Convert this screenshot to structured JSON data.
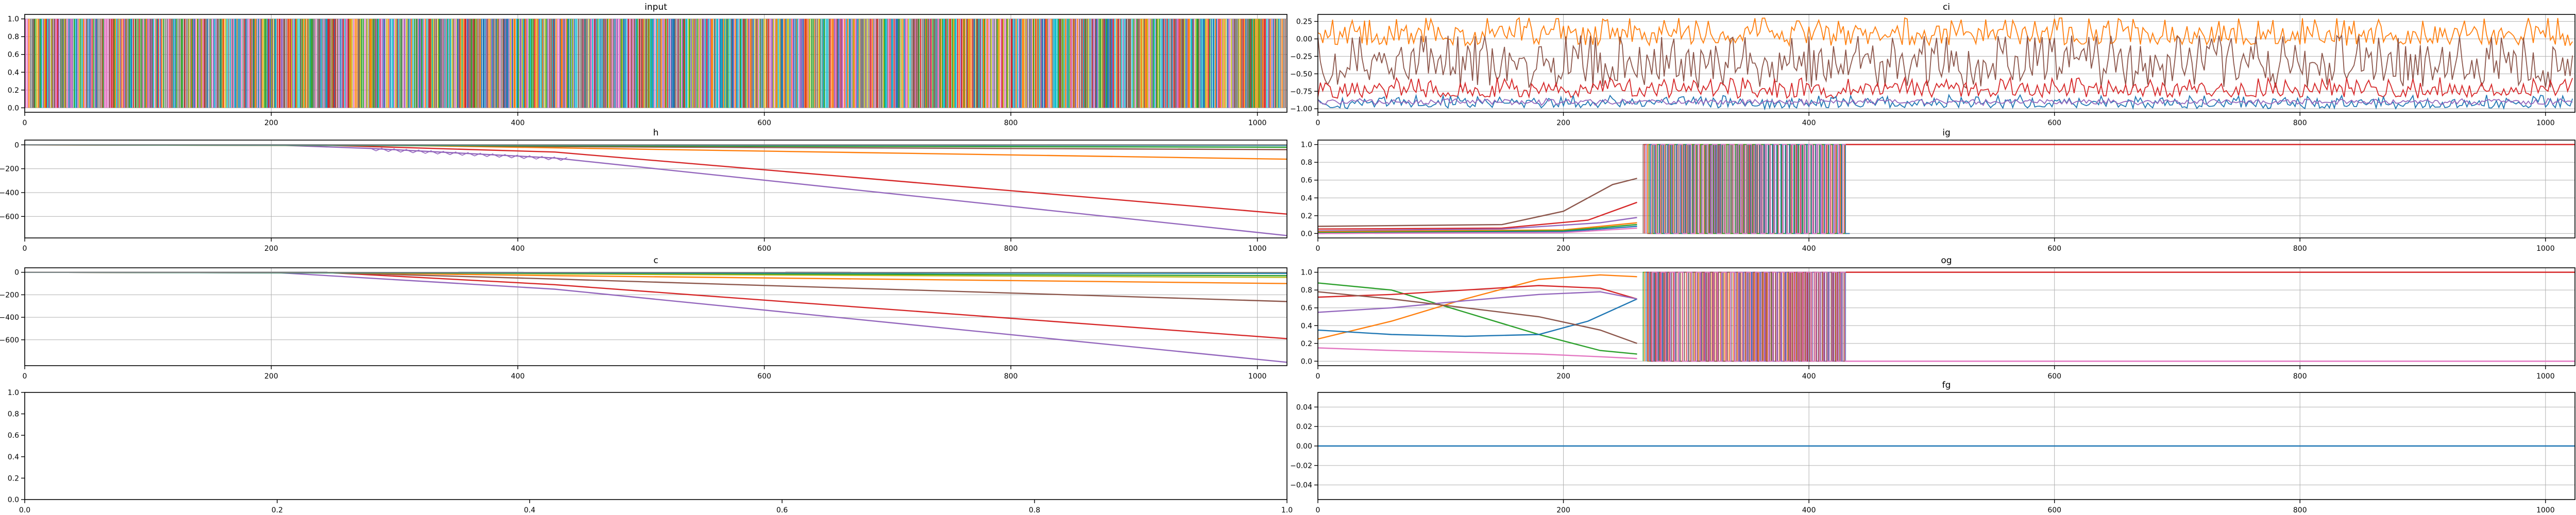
{
  "figure": {
    "background": "#ffffff"
  },
  "chart_data": [
    {
      "id": "input",
      "type": "line",
      "title": "input",
      "xlim": [
        0,
        1024
      ],
      "ylim": [
        -0.05,
        1.05
      ],
      "xticks": [
        0,
        200,
        400,
        600,
        800,
        1000
      ],
      "yticks": [
        0.0,
        0.2,
        0.4,
        0.6,
        0.8,
        1.0
      ],
      "ytick_labels": [
        "0.0",
        "0.2",
        "0.4",
        "0.6",
        "0.8",
        "1.0"
      ],
      "grid": true,
      "render": "dense_binary",
      "description_series": "many overlapping binary (0/1) input channels across t = 0–1023",
      "series": []
    },
    {
      "id": "ci",
      "type": "line",
      "title": "ci",
      "xlim": [
        0,
        1024
      ],
      "ylim": [
        -1.05,
        0.35
      ],
      "xticks": [
        0,
        200,
        400,
        600,
        800,
        1000
      ],
      "yticks": [
        0.25,
        0.0,
        -0.25,
        -0.5,
        -0.75,
        -1.0
      ],
      "ytick_labels": [
        "0.25",
        "0.00",
        "−0.25",
        "−0.50",
        "−0.75",
        "−1.00"
      ],
      "grid": true,
      "render": "noisy",
      "series": [
        {
          "color": "#ff7f0e",
          "band": [
            -0.1,
            0.3
          ],
          "base": 0.05
        },
        {
          "color": "#8c564b",
          "band": [
            -0.7,
            0.05
          ],
          "base": -0.35
        },
        {
          "color": "#d62728",
          "band": [
            -0.85,
            -0.55
          ],
          "base": -0.73
        },
        {
          "color": "#1f77b4",
          "band": [
            -1.0,
            -0.8
          ],
          "base": -0.92
        },
        {
          "color": "#9467bd",
          "band": [
            -0.95,
            -0.85
          ],
          "base": -0.9
        }
      ]
    },
    {
      "id": "h",
      "type": "line",
      "title": "h",
      "xlim": [
        0,
        1024
      ],
      "ylim": [
        -780,
        40
      ],
      "xticks": [
        0,
        200,
        400,
        600,
        800,
        1000
      ],
      "yticks": [
        0,
        -200,
        -400,
        -600
      ],
      "ytick_labels": [
        "0",
        "−200",
        "−400",
        "−600"
      ],
      "grid": true,
      "render": "polyline",
      "series": [
        {
          "color": "#9467bd",
          "x": [
            0,
            200,
            280,
            430,
            1024
          ],
          "y": [
            0,
            0,
            -30,
            -110,
            -760
          ]
        },
        {
          "color": "#d62728",
          "x": [
            0,
            250,
            430,
            1024
          ],
          "y": [
            0,
            -5,
            -60,
            -580
          ]
        },
        {
          "color": "#ff7f0e",
          "x": [
            0,
            300,
            430,
            1024
          ],
          "y": [
            0,
            -3,
            -25,
            -120
          ]
        },
        {
          "color": "#8c564b",
          "x": [
            0,
            300,
            430,
            1024
          ],
          "y": [
            0,
            -2,
            -15,
            -40
          ]
        },
        {
          "color": "#2ca02c",
          "x": [
            0,
            430,
            1024
          ],
          "y": [
            0,
            -8,
            -20
          ]
        },
        {
          "color": "#1f77b4",
          "x": [
            0,
            1024
          ],
          "y": [
            0,
            -5
          ]
        },
        {
          "color": "#17becf",
          "x": [
            0,
            1024
          ],
          "y": [
            0,
            -2
          ]
        },
        {
          "color": "#7f7f7f",
          "x": [
            0,
            1024
          ],
          "y": [
            0,
            0
          ]
        }
      ]
    },
    {
      "id": "ig",
      "type": "line",
      "title": "ig",
      "xlim": [
        0,
        1024
      ],
      "ylim": [
        -0.05,
        1.05
      ],
      "xticks": [
        0,
        200,
        400,
        600,
        800,
        1000
      ],
      "yticks": [
        0.0,
        0.2,
        0.4,
        0.6,
        0.8,
        1.0
      ],
      "ytick_labels": [
        "0.0",
        "0.2",
        "0.4",
        "0.6",
        "0.8",
        "1.0"
      ],
      "grid": true,
      "render": "gate",
      "osc": [
        265,
        430
      ],
      "final": 1.0,
      "series": [
        {
          "color": "#8c564b",
          "x": [
            0,
            150,
            200,
            240,
            260
          ],
          "y": [
            0.08,
            0.1,
            0.25,
            0.55,
            0.62
          ]
        },
        {
          "color": "#d62728",
          "x": [
            0,
            150,
            220,
            260
          ],
          "y": [
            0.05,
            0.06,
            0.15,
            0.35
          ]
        },
        {
          "color": "#9467bd",
          "x": [
            0,
            150,
            230,
            260
          ],
          "y": [
            0.03,
            0.05,
            0.12,
            0.18
          ]
        },
        {
          "color": "#ff7f0e",
          "x": [
            0,
            200,
            260
          ],
          "y": [
            0.02,
            0.04,
            0.12
          ]
        },
        {
          "color": "#2ca02c",
          "x": [
            0,
            200,
            260
          ],
          "y": [
            0.01,
            0.03,
            0.1
          ]
        },
        {
          "color": "#1f77b4",
          "x": [
            0,
            200,
            260
          ],
          "y": [
            0.0,
            0.02,
            0.08
          ]
        },
        {
          "color": "#e377c2",
          "x": [
            0,
            200,
            260
          ],
          "y": [
            0.0,
            0.01,
            0.06
          ]
        }
      ]
    },
    {
      "id": "c",
      "type": "line",
      "title": "c",
      "xlim": [
        0,
        1024
      ],
      "ylim": [
        -830,
        40
      ],
      "xticks": [
        0,
        200,
        400,
        600,
        800,
        1000
      ],
      "yticks": [
        0,
        -200,
        -400,
        -600
      ],
      "ytick_labels": [
        "0",
        "−200",
        "−400",
        "−600"
      ],
      "grid": true,
      "render": "polyline",
      "series": [
        {
          "color": "#9467bd",
          "x": [
            0,
            200,
            430,
            1024
          ],
          "y": [
            0,
            0,
            -150,
            -800
          ]
        },
        {
          "color": "#d62728",
          "x": [
            0,
            250,
            430,
            1024
          ],
          "y": [
            0,
            -5,
            -110,
            -590
          ]
        },
        {
          "color": "#8c564b",
          "x": [
            0,
            250,
            430,
            1024
          ],
          "y": [
            0,
            -5,
            -60,
            -260
          ]
        },
        {
          "color": "#ff7f0e",
          "x": [
            0,
            250,
            430,
            1024
          ],
          "y": [
            0,
            -3,
            -30,
            -100
          ]
        },
        {
          "color": "#bcbd22",
          "x": [
            0,
            300,
            430,
            1024
          ],
          "y": [
            0,
            -2,
            -15,
            -45
          ]
        },
        {
          "color": "#2ca02c",
          "x": [
            0,
            430,
            1024
          ],
          "y": [
            0,
            -8,
            -30
          ]
        },
        {
          "color": "#1f77b4",
          "x": [
            0,
            1024
          ],
          "y": [
            0,
            -10
          ]
        },
        {
          "color": "#17becf",
          "x": [
            0,
            1024
          ],
          "y": [
            0,
            -4
          ]
        },
        {
          "color": "#7f7f7f",
          "x": [
            0,
            1024
          ],
          "y": [
            0,
            -1
          ]
        }
      ]
    },
    {
      "id": "og",
      "type": "line",
      "title": "og",
      "xlim": [
        0,
        1024
      ],
      "ylim": [
        -0.05,
        1.05
      ],
      "xticks": [
        0,
        200,
        400,
        600,
        800,
        1000
      ],
      "yticks": [
        0.0,
        0.2,
        0.4,
        0.6,
        0.8,
        1.0
      ],
      "ytick_labels": [
        "0.0",
        "0.2",
        "0.4",
        "0.6",
        "0.8",
        "1.0"
      ],
      "grid": true,
      "render": "gate",
      "osc": [
        265,
        430
      ],
      "final": 1.0,
      "final_low": {
        "color": "#e377c2",
        "value": 0.0
      },
      "series": [
        {
          "color": "#2ca02c",
          "x": [
            0,
            60,
            120,
            180,
            230,
            260
          ],
          "y": [
            0.88,
            0.8,
            0.55,
            0.3,
            0.12,
            0.08
          ]
        },
        {
          "color": "#ff7f0e",
          "x": [
            0,
            60,
            120,
            180,
            230,
            260
          ],
          "y": [
            0.25,
            0.45,
            0.7,
            0.92,
            0.97,
            0.95
          ]
        },
        {
          "color": "#1f77b4",
          "x": [
            0,
            60,
            120,
            180,
            220,
            260
          ],
          "y": [
            0.35,
            0.3,
            0.28,
            0.3,
            0.45,
            0.7
          ]
        },
        {
          "color": "#d62728",
          "x": [
            0,
            60,
            120,
            180,
            230,
            260
          ],
          "y": [
            0.72,
            0.75,
            0.8,
            0.85,
            0.82,
            0.7
          ]
        },
        {
          "color": "#9467bd",
          "x": [
            0,
            60,
            120,
            180,
            230,
            260
          ],
          "y": [
            0.55,
            0.6,
            0.68,
            0.75,
            0.78,
            0.7
          ]
        },
        {
          "color": "#8c564b",
          "x": [
            0,
            60,
            120,
            180,
            230,
            260
          ],
          "y": [
            0.78,
            0.7,
            0.6,
            0.5,
            0.35,
            0.2
          ]
        },
        {
          "color": "#e377c2",
          "x": [
            0,
            60,
            120,
            180,
            230,
            260
          ],
          "y": [
            0.15,
            0.12,
            0.1,
            0.08,
            0.05,
            0.03
          ]
        }
      ]
    },
    {
      "id": "empty",
      "type": "line",
      "title": "",
      "xlim": [
        0,
        1
      ],
      "ylim": [
        0,
        1
      ],
      "xticks": [
        0.0,
        0.2,
        0.4,
        0.6,
        0.8,
        1.0
      ],
      "xtick_labels": [
        "0.0",
        "0.2",
        "0.4",
        "0.6",
        "0.8",
        "1.0"
      ],
      "yticks": [
        0.0,
        0.2,
        0.4,
        0.6,
        0.8,
        1.0
      ],
      "ytick_labels": [
        "0.0",
        "0.2",
        "0.4",
        "0.6",
        "0.8",
        "1.0"
      ],
      "grid": false,
      "render": "none",
      "series": []
    },
    {
      "id": "fg",
      "type": "line",
      "title": "fg",
      "xlim": [
        0,
        1024
      ],
      "ylim": [
        -0.055,
        0.055
      ],
      "xticks": [
        0,
        200,
        400,
        600,
        800,
        1000
      ],
      "yticks": [
        0.04,
        0.02,
        0.0,
        -0.02,
        -0.04
      ],
      "ytick_labels": [
        "0.04",
        "0.02",
        "0.00",
        "−0.02",
        "−0.04"
      ],
      "grid": true,
      "render": "polyline",
      "series": [
        {
          "color": "#1f77b4",
          "x": [
            0,
            1024
          ],
          "y": [
            0,
            0
          ]
        }
      ]
    }
  ]
}
